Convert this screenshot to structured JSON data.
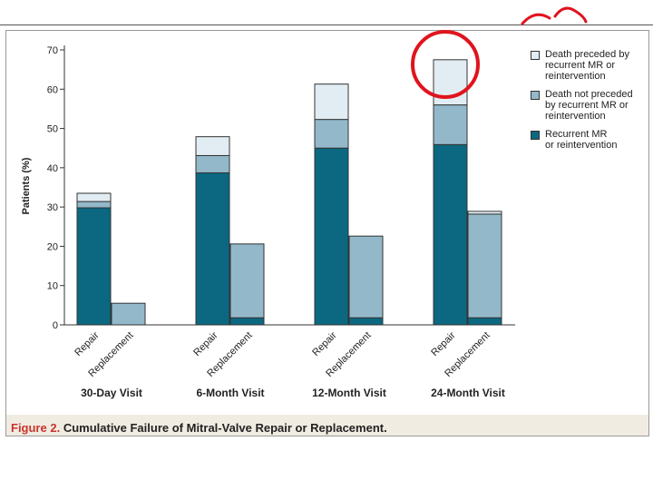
{
  "caption": {
    "figure_number": "Figure 2.",
    "title": "Cumulative Failure of Mitral-Valve Repair or Replacement."
  },
  "colors": {
    "recurrent": "#0b6880",
    "death_not_preceded": "#93b8c9",
    "death_preceded": "#e2edf3",
    "outline": "#333333",
    "highlight_circle": "#e0141e",
    "caption_accent": "#c8352c"
  },
  "chart_data": {
    "type": "bar",
    "stacked": true,
    "ylabel": "Patients (%)",
    "ylim": [
      0,
      70
    ],
    "yticks": [
      0,
      10,
      20,
      30,
      40,
      50,
      60,
      70
    ],
    "groups": [
      "30-Day Visit",
      "6-Month Visit",
      "12-Month Visit",
      "24-Month Visit"
    ],
    "subcategories": [
      "Repair",
      "Replacement"
    ],
    "series": [
      {
        "key": "recurrent",
        "name": "Recurrent MR or reintervention",
        "values": [
          [
            29.8,
            0
          ],
          [
            38.7,
            1.8
          ],
          [
            45.0,
            1.8
          ],
          [
            45.9,
            1.8
          ]
        ]
      },
      {
        "key": "death_not_preceded",
        "name": "Death not preceded by recurrent MR or reintervention",
        "values": [
          [
            1.6,
            5.5
          ],
          [
            4.4,
            18.8
          ],
          [
            7.3,
            20.8
          ],
          [
            10.1,
            26.4
          ]
        ]
      },
      {
        "key": "death_preceded",
        "name": "Death preceded by recurrent MR or reintervention",
        "values": [
          [
            2.1,
            0
          ],
          [
            4.8,
            0
          ],
          [
            9.0,
            0
          ],
          [
            11.5,
            0.7
          ]
        ]
      }
    ],
    "legend_position": "top-right",
    "legend_order": [
      "death_preceded",
      "death_not_preceded",
      "recurrent"
    ],
    "annotation": "hand-drawn red circle around 24-Month Visit Repair bar"
  },
  "legend": {
    "items": [
      {
        "key": "death_preceded",
        "line1": "Death preceded by",
        "line2": "recurrent MR or",
        "line3": "reintervention"
      },
      {
        "key": "death_not_preceded",
        "line1": "Death not preceded",
        "line2": "by recurrent MR or",
        "line3": "reintervention"
      },
      {
        "key": "recurrent",
        "line1": "Recurrent MR",
        "line2": "or reintervention",
        "line3": ""
      }
    ]
  }
}
